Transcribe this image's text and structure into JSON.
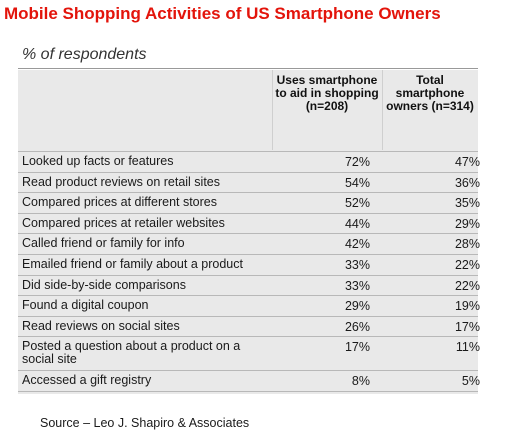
{
  "chart_data": {
    "type": "table",
    "title": "Mobile Shopping Activities of US Smartphone Owners",
    "subtitle": "% of respondents",
    "columns": [
      "Uses smartphone to aid in shopping (n=208)",
      "Total smartphone owners (n=314)"
    ],
    "rows": [
      {
        "label": "Looked up facts or features",
        "values": [
          "72%",
          "47%"
        ]
      },
      {
        "label": "Read product reviews on retail sites",
        "values": [
          "54%",
          "36%"
        ]
      },
      {
        "label": "Compared prices at different stores",
        "values": [
          "52%",
          "35%"
        ]
      },
      {
        "label": "Compared prices at retailer websites",
        "values": [
          "44%",
          "29%"
        ]
      },
      {
        "label": "Called friend or family for info",
        "values": [
          "42%",
          "28%"
        ]
      },
      {
        "label": "Emailed friend or family about a product",
        "values": [
          "33%",
          "22%"
        ]
      },
      {
        "label": "Did side-by-side comparisons",
        "values": [
          "33%",
          "22%"
        ]
      },
      {
        "label": "Found a digital coupon",
        "values": [
          "29%",
          "19%"
        ]
      },
      {
        "label": "Read reviews on social sites",
        "values": [
          "26%",
          "17%"
        ]
      },
      {
        "label": "Posted a question about a product on a social site",
        "values": [
          "17%",
          "11%"
        ]
      },
      {
        "label": "Accessed a gift registry",
        "values": [
          "8%",
          "5%"
        ]
      }
    ],
    "source": "Source – Leo J. Shapiro & Associates"
  },
  "colors": {
    "title": "#e3140b",
    "table_background": "#e9e9e9"
  }
}
